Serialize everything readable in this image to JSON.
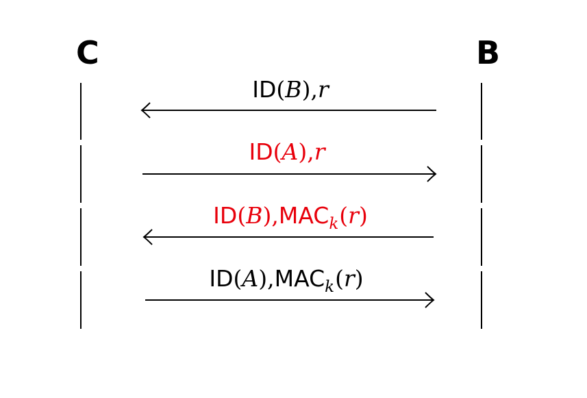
{
  "parties": {
    "left": "C",
    "right": "B"
  },
  "messages": [
    {
      "direction": "right-to-left",
      "color": "#000000",
      "id_label": "ID",
      "id_arg": "B",
      "payload": "r",
      "mac_label": "",
      "mac_key": ""
    },
    {
      "direction": "left-to-right",
      "color": "#e8000b",
      "id_label": "ID",
      "id_arg": "A",
      "payload": "r",
      "mac_label": "",
      "mac_key": ""
    },
    {
      "direction": "right-to-left",
      "color": "#e8000b",
      "id_label": "ID",
      "id_arg": "B",
      "payload": "r",
      "mac_label": "MAC",
      "mac_key": "k"
    },
    {
      "direction": "left-to-right",
      "color": "#000000",
      "id_label": "ID",
      "id_arg": "A",
      "payload": "r",
      "mac_label": "MAC",
      "mac_key": "k"
    }
  ]
}
